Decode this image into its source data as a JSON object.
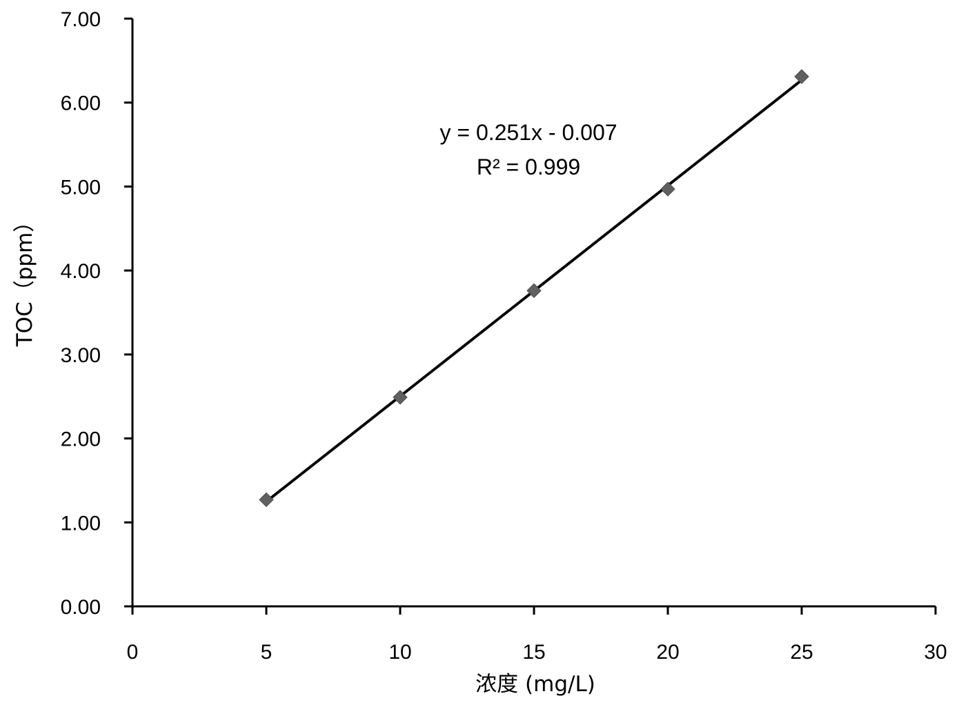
{
  "chart_data": {
    "type": "scatter",
    "xlabel": "浓度 (mg/L)",
    "ylabel": "TOC（ppm）",
    "xlim": [
      0,
      30
    ],
    "ylim": [
      0,
      7
    ],
    "x_ticks": [
      "0",
      "5",
      "10",
      "15",
      "20",
      "25",
      "30"
    ],
    "y_ticks": [
      "0.00",
      "1.00",
      "2.00",
      "3.00",
      "4.00",
      "5.00",
      "6.00",
      "7.00"
    ],
    "series": [
      {
        "x": [
          5,
          10,
          15,
          20,
          25
        ],
        "y": [
          1.27,
          2.49,
          3.76,
          4.97,
          6.31
        ],
        "marker": "diamond",
        "color": "#606060"
      }
    ],
    "trendline": {
      "slope": 0.251,
      "intercept": -0.007,
      "x_range": [
        5,
        25
      ],
      "color": "#000000"
    },
    "annotations": {
      "equation": "y = 0.251x - 0.007",
      "r_squared": "R² = 0.999"
    },
    "grid": false,
    "legend": "none"
  }
}
